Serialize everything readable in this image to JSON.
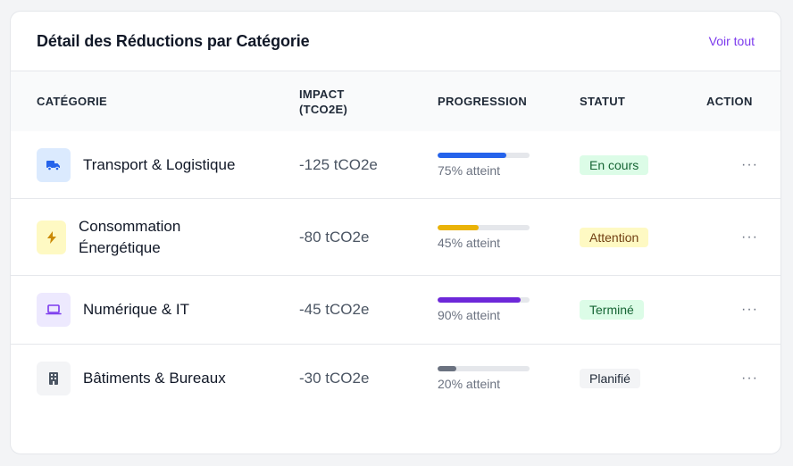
{
  "header": {
    "title": "Détail des Réductions par Catégorie",
    "see_all": "Voir tout"
  },
  "columns": {
    "category": "CATÉGORIE",
    "impact_line1": "IMPACT",
    "impact_line2": "(TCO2E)",
    "progress": "PROGRESSION",
    "status": "STATUT",
    "action": "ACTION"
  },
  "rows": [
    {
      "icon": "truck-icon",
      "label": "Transport & Logistique",
      "impact": "-125 tCO2e",
      "progress": 75,
      "progress_text": "75% atteint",
      "status": "En cours",
      "colors": {
        "icon_bg": "#dbeafe",
        "icon_fg": "#2563eb",
        "bar": "#2563eb",
        "badge_bg": "#dcfce7",
        "badge_fg": "#166534"
      }
    },
    {
      "icon": "lightning-icon",
      "label": "Consommation Énergétique",
      "impact": "-80 tCO2e",
      "progress": 45,
      "progress_text": "45% atteint",
      "status": "Attention",
      "colors": {
        "icon_bg": "#fef9c3",
        "icon_fg": "#ca8a04",
        "bar": "#eab308",
        "badge_bg": "#fef9c3",
        "badge_fg": "#713f12"
      }
    },
    {
      "icon": "laptop-icon",
      "label": "Numérique & IT",
      "impact": "-45 tCO2e",
      "progress": 90,
      "progress_text": "90% atteint",
      "status": "Terminé",
      "colors": {
        "icon_bg": "#ede9fe",
        "icon_fg": "#7c3aed",
        "bar": "#6d28d9",
        "badge_bg": "#dcfce7",
        "badge_fg": "#166534"
      }
    },
    {
      "icon": "building-icon",
      "label": "Bâtiments & Bureaux",
      "impact": "-30 tCO2e",
      "progress": 20,
      "progress_text": "20% atteint",
      "status": "Planifié",
      "colors": {
        "icon_bg": "#f3f4f6",
        "icon_fg": "#4b5563",
        "bar": "#6b7280",
        "badge_bg": "#f3f4f6",
        "badge_fg": "#1f2937"
      }
    }
  ],
  "action_icon": "more-horizontal-icon"
}
